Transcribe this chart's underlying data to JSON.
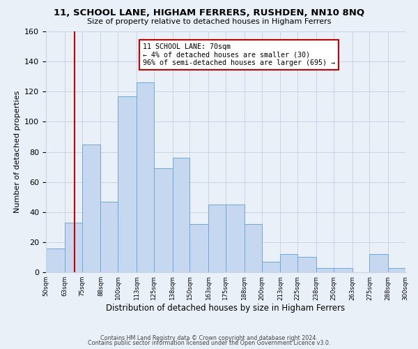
{
  "title": "11, SCHOOL LANE, HIGHAM FERRERS, RUSHDEN, NN10 8NQ",
  "subtitle": "Size of property relative to detached houses in Higham Ferrers",
  "xlabel": "Distribution of detached houses by size in Higham Ferrers",
  "ylabel": "Number of detached properties",
  "bin_edges": [
    50,
    63,
    75,
    88,
    100,
    113,
    125,
    138,
    150,
    163,
    175,
    188,
    200,
    213,
    225,
    238,
    250,
    263,
    275,
    288,
    300
  ],
  "bar_heights": [
    16,
    33,
    85,
    47,
    117,
    126,
    69,
    76,
    32,
    45,
    45,
    32,
    7,
    12,
    10,
    3,
    3,
    0,
    12,
    3
  ],
  "bar_color": "#c5d8f0",
  "bar_edge_color": "#6ea8d8",
  "vline_x": 70,
  "vline_color": "#cc0000",
  "annotation_line1": "11 SCHOOL LANE: 70sqm",
  "annotation_line2": "← 4% of detached houses are smaller (30)",
  "annotation_line3": "96% of semi-detached houses are larger (695) →",
  "annotation_box_edge": "#cc0000",
  "ylim": [
    0,
    160
  ],
  "yticks": [
    0,
    20,
    40,
    60,
    80,
    100,
    120,
    140,
    160
  ],
  "bg_color": "#eaf0f8",
  "plot_bg_color": "#eaf0f8",
  "grid_color": "#c8d4e4",
  "footer_line1": "Contains HM Land Registry data © Crown copyright and database right 2024.",
  "footer_line2": "Contains public sector information licensed under the Open Government Licence v3.0."
}
